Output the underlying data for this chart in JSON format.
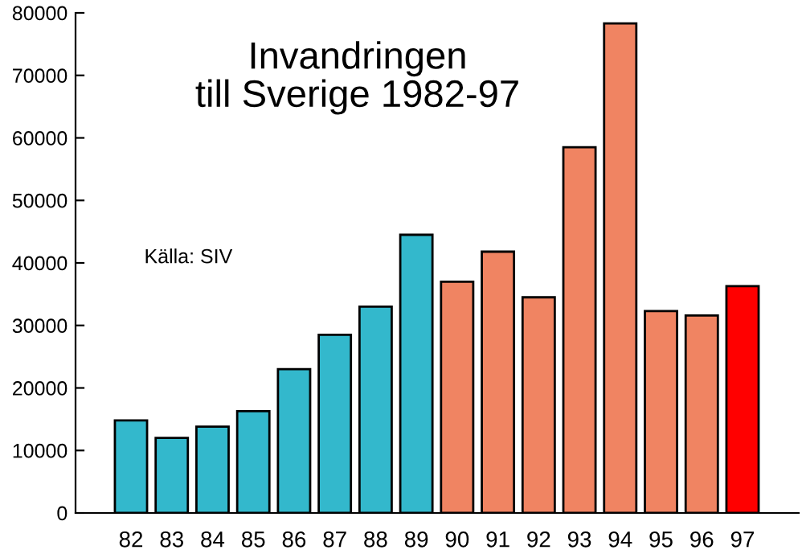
{
  "chart_data": {
    "type": "bar",
    "title": "Invandringen\ntill Sverige 1982-97",
    "categories": [
      "82",
      "83",
      "84",
      "85",
      "86",
      "87",
      "88",
      "89",
      "90",
      "91",
      "92",
      "93",
      "94",
      "95",
      "96",
      "97"
    ],
    "values": [
      14800,
      12000,
      13800,
      16300,
      23000,
      28500,
      33000,
      44500,
      37000,
      41800,
      34500,
      58500,
      78300,
      32300,
      31600,
      36300
    ],
    "colors": [
      "#33b8cc",
      "#33b8cc",
      "#33b8cc",
      "#33b8cc",
      "#33b8cc",
      "#33b8cc",
      "#33b8cc",
      "#33b8cc",
      "#f08462",
      "#f08462",
      "#f08462",
      "#f08462",
      "#f08462",
      "#f08462",
      "#f08462",
      "#ff0000"
    ],
    "ylim": [
      0,
      80000
    ],
    "yticks": [
      0,
      10000,
      20000,
      30000,
      40000,
      50000,
      60000,
      70000,
      80000
    ],
    "annotations": [
      "Källa: SIV"
    ],
    "grid": false
  }
}
